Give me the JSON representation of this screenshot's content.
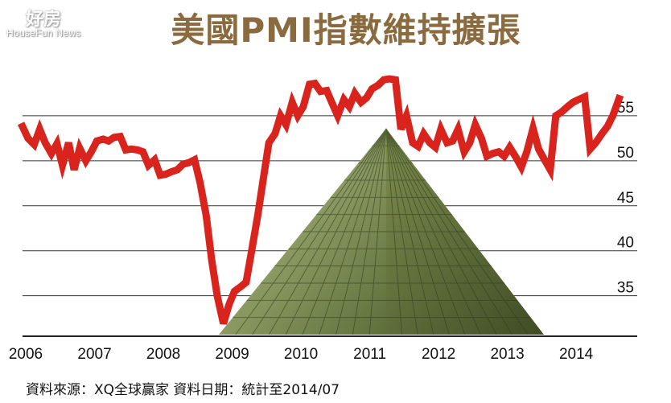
{
  "watermark": {
    "main": "好房",
    "sub": "HouseFun News"
  },
  "title": "美國PMI指數維持擴張",
  "source": "資料來源：XQ全球贏家  資料日期：統計至2014/07",
  "chart_data": {
    "type": "line",
    "title": "美國PMI指數維持擴張",
    "xlabel": "",
    "ylabel": "",
    "x_ticks": [
      "2006",
      "2007",
      "2008",
      "2009",
      "2010",
      "2011",
      "2012",
      "2013",
      "2014"
    ],
    "y_ticks": [
      35,
      40,
      45,
      50,
      55
    ],
    "ylim": [
      30.5,
      60
    ],
    "xlim": [
      2006.0,
      2014.7
    ],
    "grid": true,
    "legend": "none",
    "line_color": "#d9231d",
    "series": [
      {
        "values": [
          [
            2006.0,
            53.8
          ],
          [
            2006.08,
            52.5
          ],
          [
            2006.17,
            51.8
          ],
          [
            2006.25,
            53.5
          ],
          [
            2006.33,
            52.0
          ],
          [
            2006.42,
            50.8
          ],
          [
            2006.5,
            51.9
          ],
          [
            2006.58,
            49.5
          ],
          [
            2006.67,
            52.0
          ],
          [
            2006.75,
            49.0
          ],
          [
            2006.83,
            51.4
          ],
          [
            2006.92,
            50.0
          ],
          [
            2007.0,
            51.0
          ],
          [
            2007.08,
            52.2
          ],
          [
            2007.17,
            52.4
          ],
          [
            2007.25,
            52.2
          ],
          [
            2007.33,
            52.6
          ],
          [
            2007.42,
            52.7
          ],
          [
            2007.5,
            51.2
          ],
          [
            2007.58,
            51.3
          ],
          [
            2007.67,
            51.2
          ],
          [
            2007.75,
            51.0
          ],
          [
            2007.83,
            49.5
          ],
          [
            2007.92,
            50.1
          ],
          [
            2008.0,
            48.4
          ],
          [
            2008.08,
            48.5
          ],
          [
            2008.17,
            48.8
          ],
          [
            2008.25,
            49.0
          ],
          [
            2008.33,
            49.6
          ],
          [
            2008.42,
            49.8
          ],
          [
            2008.5,
            50.1
          ],
          [
            2008.58,
            47.6
          ],
          [
            2008.67,
            43.9
          ],
          [
            2008.75,
            38.9
          ],
          [
            2008.83,
            35.0
          ],
          [
            2008.92,
            31.9
          ],
          [
            2009.0,
            34.0
          ],
          [
            2009.08,
            35.5
          ],
          [
            2009.17,
            36.0
          ],
          [
            2009.25,
            36.5
          ],
          [
            2009.33,
            40.0
          ],
          [
            2009.42,
            44.0
          ],
          [
            2009.5,
            48.0
          ],
          [
            2009.58,
            52.0
          ],
          [
            2009.67,
            53.0
          ],
          [
            2009.75,
            55.0
          ],
          [
            2009.83,
            54.0
          ],
          [
            2009.92,
            56.5
          ],
          [
            2010.0,
            55.0
          ],
          [
            2010.08,
            56.0
          ],
          [
            2010.17,
            58.5
          ],
          [
            2010.25,
            58.6
          ],
          [
            2010.33,
            57.7
          ],
          [
            2010.42,
            57.8
          ],
          [
            2010.5,
            56.4
          ],
          [
            2010.58,
            55.0
          ],
          [
            2010.67,
            56.8
          ],
          [
            2010.75,
            56.0
          ],
          [
            2010.83,
            57.5
          ],
          [
            2010.92,
            56.5
          ],
          [
            2011.0,
            57.0
          ],
          [
            2011.08,
            58.0
          ],
          [
            2011.17,
            58.4
          ],
          [
            2011.25,
            59.0
          ],
          [
            2011.33,
            59.1
          ],
          [
            2011.42,
            59.0
          ],
          [
            2011.5,
            53.5
          ],
          [
            2011.58,
            55.0
          ],
          [
            2011.67,
            52.0
          ],
          [
            2011.75,
            51.6
          ],
          [
            2011.83,
            53.0
          ],
          [
            2011.92,
            52.0
          ],
          [
            2012.0,
            51.5
          ],
          [
            2012.08,
            53.5
          ],
          [
            2012.17,
            52.0
          ],
          [
            2012.25,
            52.2
          ],
          [
            2012.33,
            53.5
          ],
          [
            2012.42,
            51.0
          ],
          [
            2012.5,
            52.0
          ],
          [
            2012.58,
            54.0
          ],
          [
            2012.67,
            52.5
          ],
          [
            2012.75,
            50.5
          ],
          [
            2012.83,
            50.8
          ],
          [
            2012.92,
            51.0
          ],
          [
            2013.0,
            50.5
          ],
          [
            2013.08,
            51.5
          ],
          [
            2013.17,
            50.4
          ],
          [
            2013.25,
            49.3
          ],
          [
            2013.33,
            51.0
          ],
          [
            2013.42,
            53.6
          ],
          [
            2013.5,
            51.3
          ],
          [
            2013.58,
            50.2
          ],
          [
            2013.67,
            49.0
          ],
          [
            2013.75,
            55.0
          ],
          [
            2013.83,
            55.4
          ],
          [
            2013.92,
            56.0
          ],
          [
            2014.0,
            56.5
          ],
          [
            2014.08,
            56.8
          ],
          [
            2014.17,
            57.1
          ],
          [
            2014.25,
            51.3
          ],
          [
            2014.33,
            52.0
          ],
          [
            2014.42,
            53.0
          ],
          [
            2014.5,
            53.8
          ],
          [
            2014.58,
            55.0
          ],
          [
            2014.67,
            56.9
          ]
        ]
      }
    ]
  }
}
